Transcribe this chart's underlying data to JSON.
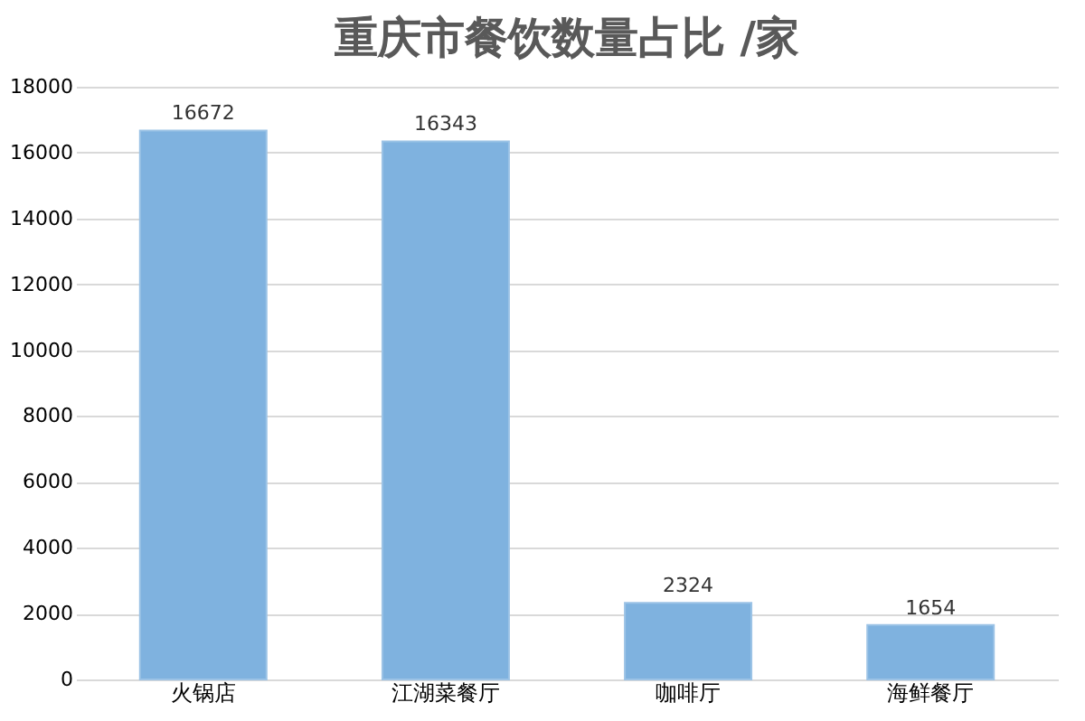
{
  "chart_data": {
    "type": "bar",
    "title": "重庆市餐饮数量占比 /家",
    "categories": [
      "火锅店",
      "江湖菜餐厅",
      "咖啡厅",
      "海鲜餐厅"
    ],
    "series": [
      {
        "color": "#7fb2df",
        "values": [
          16672,
          16343,
          2324,
          1654
        ]
      }
    ],
    "ylim": [
      0,
      18000
    ],
    "yticks": [
      0,
      2000,
      4000,
      6000,
      8000,
      10000,
      12000,
      14000,
      16000,
      18000
    ],
    "grid": "y",
    "data_labels": true
  }
}
